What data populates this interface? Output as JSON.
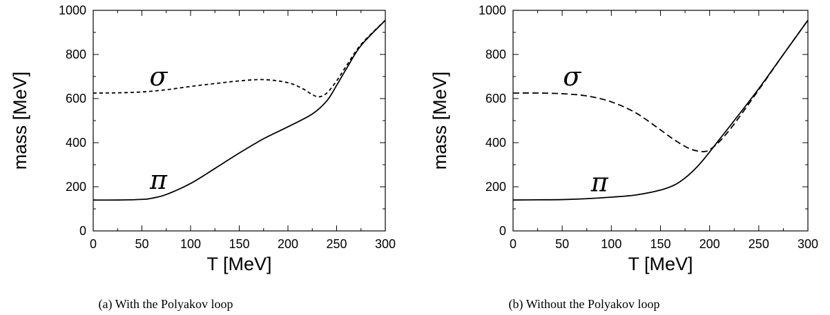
{
  "chart_data": [
    {
      "type": "line",
      "caption": "(a)  With the Polyakov loop",
      "xlabel": "T [MeV]",
      "ylabel": "mass [MeV]",
      "xlim": [
        0,
        300
      ],
      "ylim": [
        0,
        1000
      ],
      "xticks": [
        "0",
        "50",
        "100",
        "150",
        "200",
        "250",
        "300"
      ],
      "yticks": [
        "0",
        "200",
        "400",
        "600",
        "800",
        "1000"
      ],
      "grid": false,
      "annotations": [
        {
          "text": "σ",
          "x": 67,
          "y": 660
        },
        {
          "text": "π",
          "x": 67,
          "y": 190
        }
      ],
      "series": [
        {
          "name": "σ",
          "style": "dashed",
          "x": [
            0,
            25,
            50,
            75,
            100,
            125,
            150,
            175,
            200,
            215,
            225,
            232,
            240,
            250,
            260,
            275,
            300
          ],
          "y": [
            625,
            626,
            630,
            640,
            655,
            668,
            680,
            686,
            672,
            645,
            618,
            608,
            625,
            680,
            748,
            845,
            955
          ]
        },
        {
          "name": "π",
          "style": "solid",
          "x": [
            0,
            25,
            50,
            60,
            75,
            100,
            125,
            150,
            175,
            200,
            225,
            240,
            250,
            260,
            275,
            300
          ],
          "y": [
            140,
            140,
            143,
            148,
            165,
            215,
            283,
            353,
            418,
            472,
            530,
            590,
            660,
            735,
            840,
            955
          ]
        }
      ]
    },
    {
      "type": "line",
      "caption": "(b)  Without the Polyakov loop",
      "xlabel": "T [MeV]",
      "ylabel": "mass [MeV]",
      "xlim": [
        0,
        300
      ],
      "ylim": [
        0,
        1000
      ],
      "xticks": [
        "0",
        "50",
        "100",
        "150",
        "200",
        "250",
        "300"
      ],
      "yticks": [
        "0",
        "200",
        "400",
        "600",
        "800",
        "1000"
      ],
      "grid": false,
      "annotations": [
        {
          "text": "σ",
          "x": 60,
          "y": 660
        },
        {
          "text": "π",
          "x": 88,
          "y": 180
        }
      ],
      "series": [
        {
          "name": "σ",
          "style": "dashed",
          "x": [
            0,
            25,
            50,
            75,
            100,
            125,
            150,
            165,
            180,
            190,
            195,
            200,
            210,
            225,
            250,
            275,
            300
          ],
          "y": [
            625,
            625,
            622,
            612,
            585,
            535,
            458,
            410,
            372,
            361,
            360,
            368,
            405,
            485,
            640,
            800,
            955
          ]
        },
        {
          "name": "π",
          "style": "solid",
          "x": [
            0,
            25,
            50,
            75,
            100,
            125,
            150,
            165,
            175,
            185,
            195,
            210,
            225,
            250,
            275,
            300
          ],
          "y": [
            140,
            141,
            142,
            146,
            153,
            163,
            185,
            210,
            240,
            280,
            330,
            415,
            500,
            645,
            800,
            955
          ]
        }
      ]
    }
  ]
}
